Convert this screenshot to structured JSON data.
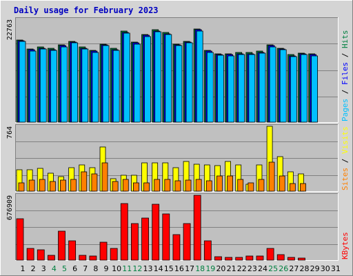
{
  "chart_data": {
    "type": "bar",
    "title": "Daily usage for February 2023",
    "categories": [
      "1",
      "2",
      "3",
      "4",
      "5",
      "6",
      "7",
      "8",
      "9",
      "10",
      "11",
      "12",
      "13",
      "14",
      "15",
      "16",
      "17",
      "18",
      "19",
      "20",
      "21",
      "22",
      "23",
      "24",
      "25",
      "26",
      "27",
      "28",
      "29",
      "30",
      "31"
    ],
    "weekend_days": [
      "4",
      "5",
      "11",
      "12",
      "18",
      "19",
      "25",
      "26"
    ],
    "colors": {
      "hits": "#008040",
      "files": "#0000ff",
      "pages": "#00c0ff",
      "visits": "#ffff00",
      "sites": "#ff8000",
      "kbytes": "#ff0000",
      "weekend_label": "#008040",
      "weekday_label": "#000000",
      "title": "#0000c0",
      "panel_bg": "#c0c0c0",
      "frame_bg": "#d4d4d4"
    },
    "panels": [
      {
        "name": "hits-files-pages",
        "max_label": "22763",
        "ylim": [
          0,
          22763
        ],
        "legend": [
          {
            "text": "Pages",
            "color": "#00c0ff"
          },
          {
            "text": "Files",
            "color": "#0000ff"
          },
          {
            "text": "Hits",
            "color": "#008040"
          }
        ],
        "series": [
          {
            "name": "Hits",
            "color": "#008040",
            "values": [
              18200,
              16200,
              16600,
              16300,
              17100,
              17900,
              16600,
              15900,
              17300,
              16300,
              20100,
              17700,
              19400,
              20400,
              19800,
              17300,
              17900,
              20600,
              15900,
              15200,
              15100,
              15400,
              15400,
              15700,
              17100,
              16400,
              14900,
              15300,
              15100,
              null,
              null
            ]
          },
          {
            "name": "Files",
            "color": "#0000ff",
            "values": [
              18000,
              16000,
              16400,
              16100,
              16900,
              17700,
              16400,
              15700,
              17100,
              16100,
              19900,
              17500,
              19200,
              20200,
              19600,
              17100,
              17700,
              20400,
              15700,
              15000,
              14900,
              15200,
              15200,
              15500,
              16900,
              16200,
              14700,
              15100,
              14900,
              null,
              null
            ]
          },
          {
            "name": "Pages",
            "color": "#00c0ff",
            "values": [
              17800,
              15800,
              16200,
              15900,
              16700,
              17500,
              16200,
              15500,
              16900,
              15900,
              19700,
              17300,
              19000,
              20000,
              19400,
              16900,
              17500,
              20200,
              15500,
              14800,
              14700,
              15000,
              15000,
              15300,
              16700,
              16000,
              14500,
              14900,
              14700,
              null,
              null
            ]
          }
        ]
      },
      {
        "name": "visits-sites",
        "max_label": "764",
        "ylim": [
          0,
          764
        ],
        "legend": [
          {
            "text": "Sites",
            "color": "#ff8000"
          },
          {
            "text": "Visits",
            "color": "#ffff00"
          }
        ],
        "series": [
          {
            "name": "Visits",
            "color": "#ffff00",
            "values": [
              250,
              250,
              270,
              210,
              170,
              280,
              310,
              280,
              520,
              150,
              190,
              190,
              330,
              330,
              330,
              280,
              350,
              320,
              310,
              300,
              350,
              310,
              80,
              310,
              760,
              410,
              230,
              200,
              null,
              null,
              null
            ]
          },
          {
            "name": "Sites",
            "color": "#ff8000",
            "values": [
              100,
              130,
              140,
              110,
              130,
              140,
              230,
              200,
              330,
              110,
              140,
              100,
              100,
              140,
              140,
              120,
              130,
              140,
              120,
              180,
              180,
              140,
              100,
              140,
              340,
              180,
              90,
              90,
              null,
              null,
              null
            ]
          }
        ]
      },
      {
        "name": "kbytes",
        "max_label": "676909",
        "ylim": [
          0,
          676909
        ],
        "legend": [
          {
            "text": "KBytes",
            "color": "#ff0000"
          }
        ],
        "series": [
          {
            "name": "KBytes",
            "color": "#ff0000",
            "values": [
              430000,
              120000,
              105000,
              50000,
              300000,
              200000,
              50000,
              40000,
              190000,
              120000,
              590000,
              380000,
              440000,
              580000,
              480000,
              270000,
              380000,
              674000,
              200000,
              35000,
              30000,
              30000,
              45000,
              40000,
              120000,
              60000,
              30000,
              25000,
              null,
              null,
              null
            ]
          }
        ]
      }
    ]
  }
}
